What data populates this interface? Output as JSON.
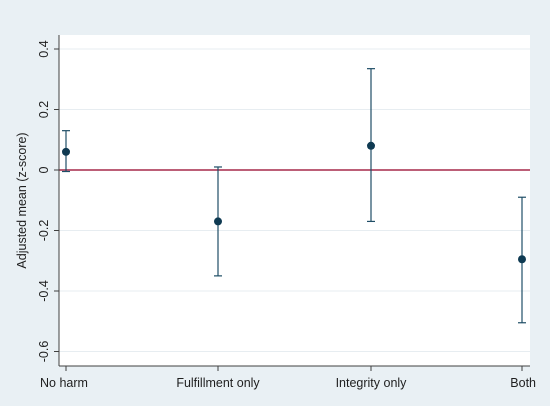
{
  "chart_data": {
    "type": "scatter",
    "title": "",
    "xlabel": "",
    "ylabel": "Adjusted mean (z-score)",
    "categories": [
      "No harm",
      "Fulfillment only",
      "Integrity only",
      "Both"
    ],
    "estimates": [
      0.06,
      -0.17,
      0.08,
      -0.295
    ],
    "ci_lower": [
      -0.005,
      -0.35,
      -0.17,
      -0.505
    ],
    "ci_upper": [
      0.13,
      0.01,
      0.335,
      -0.09
    ],
    "y_ticks": [
      0.4,
      0.2,
      0,
      -0.2,
      -0.4,
      -0.6
    ],
    "y_tick_labels": [
      "0.4",
      "0.2",
      "0",
      "-0.2",
      "-0.4",
      "-0.6"
    ],
    "ylim": [
      -0.62,
      0.42
    ],
    "reference_line": {
      "y": 0,
      "color": "#a6294a"
    },
    "grid": true,
    "colors": {
      "background": "#e9f0f4",
      "plot_area": "#ffffff",
      "marker": "#0f3a52",
      "error_bar": "#1f4e66",
      "grid": "#e7edf1",
      "axis": "#404040"
    }
  }
}
